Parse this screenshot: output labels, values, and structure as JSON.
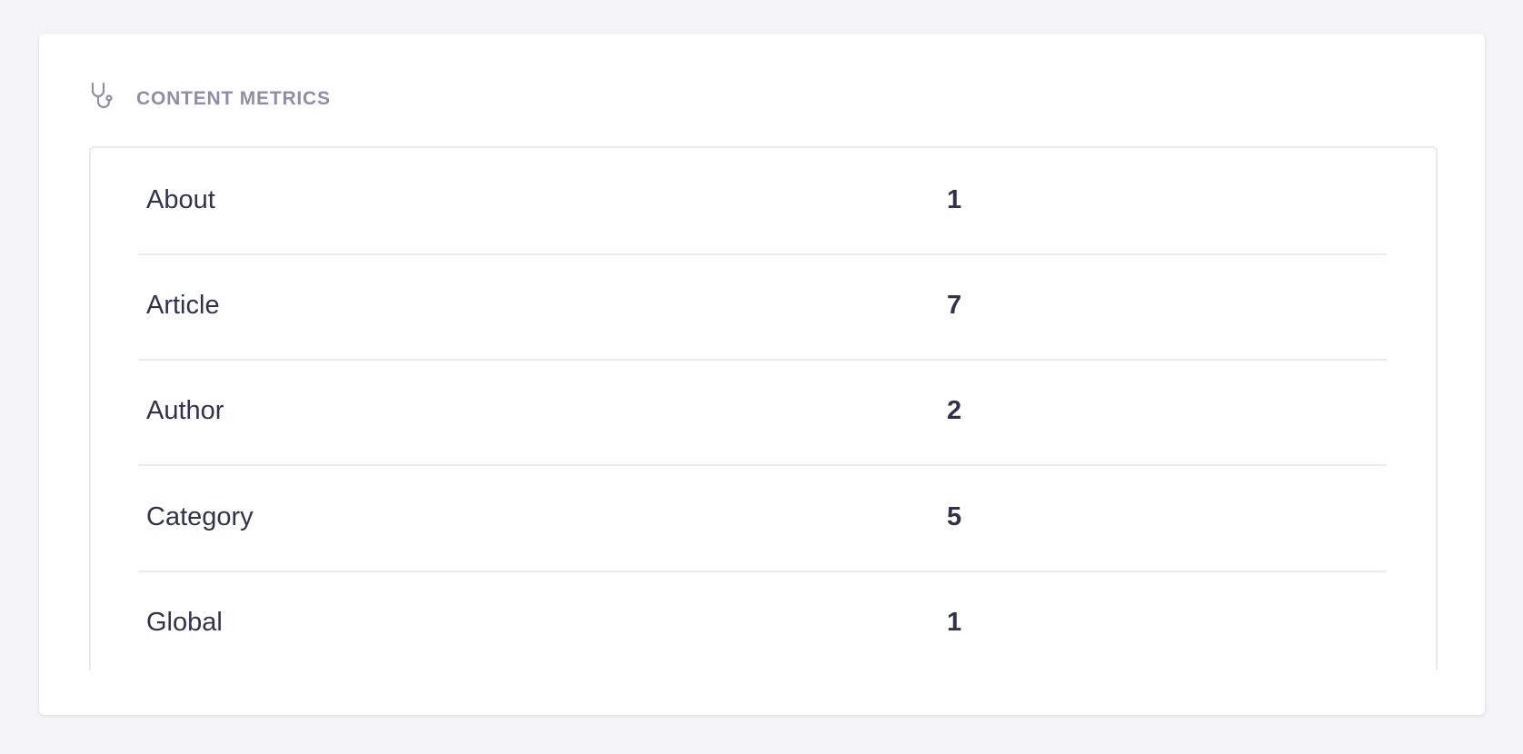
{
  "section": {
    "title": "CONTENT METRICS",
    "icon": "stethoscope-icon"
  },
  "metrics": [
    {
      "label": "About",
      "count": "1"
    },
    {
      "label": "Article",
      "count": "7"
    },
    {
      "label": "Author",
      "count": "2"
    },
    {
      "label": "Category",
      "count": "5"
    },
    {
      "label": "Global",
      "count": "1"
    }
  ],
  "colors": {
    "title": "#8e8ea9",
    "text": "#32324d",
    "border": "#eaeaef",
    "background": "#f5f5f7"
  }
}
